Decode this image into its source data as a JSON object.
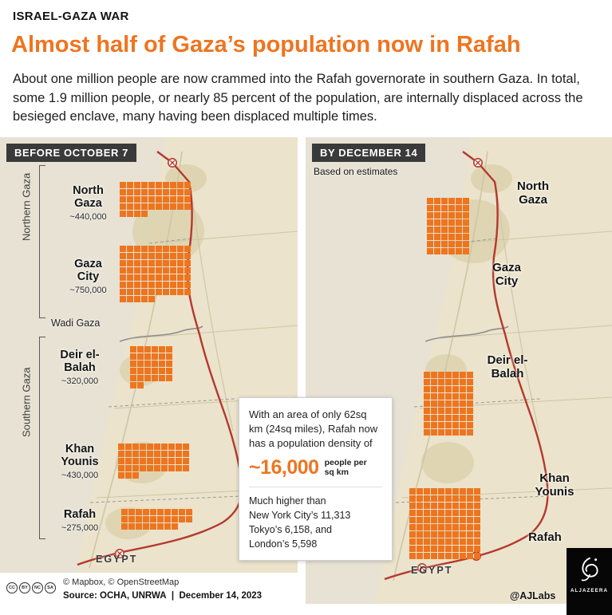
{
  "page": {
    "kicker": "ISRAEL-GAZA WAR",
    "title": "Almost half of Gaza’s population now in Rafah",
    "intro": "About one million people are now crammed into the Rafah governorate in southern Gaza. In total, some 1.9 million people, or nearly 85 percent of the population, are internally displaced across the besieged enclave, many having been displaced multiple times."
  },
  "colors": {
    "accent_orange": "#ee7520",
    "border_red": "#b5382e",
    "map_land": "#ebe3cb",
    "map_sea": "#e7e2d4"
  },
  "before_map": {
    "header": "BEFORE OCTOBER 7",
    "bracket_north": "Northern Gaza",
    "bracket_south": "Southern Gaza",
    "wadi_label": "Wadi Gaza",
    "egypt_label": "EGYPT",
    "regions": [
      {
        "name": "North Gaza",
        "population": "~440,000",
        "grid": {
          "count": 44,
          "cols": 10
        }
      },
      {
        "name": "Gaza City",
        "population": "~750,000",
        "grid": {
          "count": 75,
          "cols": 10
        }
      },
      {
        "name": "Deir el-Balah",
        "population": "~320,000",
        "grid": {
          "count": 32,
          "cols": 6
        }
      },
      {
        "name": "Khan Younis",
        "population": "~430,000",
        "grid": {
          "count": 43,
          "cols": 10
        }
      },
      {
        "name": "Rafah",
        "population": "~275,000",
        "grid": {
          "count": 28,
          "cols": 10
        }
      }
    ]
  },
  "after_map": {
    "header": "BY DECEMBER 14",
    "note": "Based on estimates",
    "egypt_label": "EGYPT",
    "labels": {
      "north_gaza": "North Gaza",
      "gaza_city": "Gaza City",
      "deir_el_balah": "Deir el-Balah",
      "khan_younis": "Khan Younis",
      "rafah": "Rafah"
    },
    "grids": {
      "north": {
        "count": 48,
        "cols": 6
      },
      "central": {
        "count": 63,
        "cols": 7
      },
      "rafah": {
        "count": 100,
        "cols": 10
      }
    }
  },
  "callout": {
    "lead": "With an area of only 62sq km (24sq miles), Rafah now has a population density of",
    "figure": "~16,000",
    "figure_unit": "people per\nsq km",
    "comparison": "Much higher than\nNew York City’s 11,313\nTokyo’s 6,158, and\nLondon’s 5,598"
  },
  "footer": {
    "cc_badges": [
      "CC",
      "BY",
      "NC",
      "SA"
    ],
    "map_credit": "© Mapbox, © OpenStreetMap",
    "source": "Source: OCHA, UNRWA  |  December 14, 2023",
    "handle": "@AJLabs",
    "logo_text": "ALJAZEERA"
  }
}
